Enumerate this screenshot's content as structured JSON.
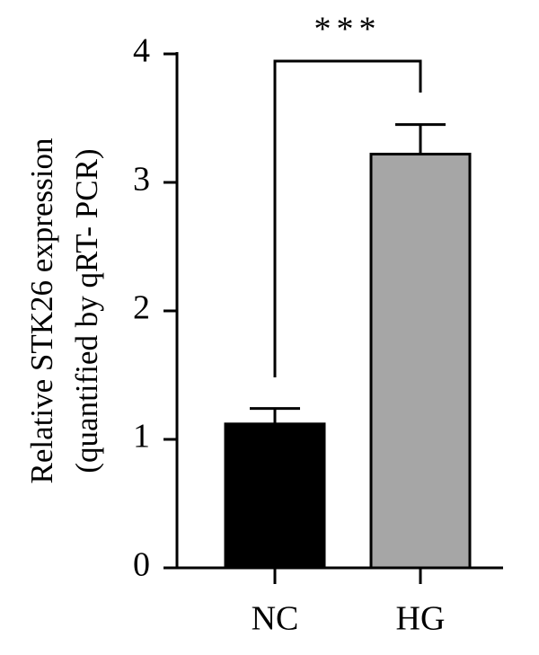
{
  "chart_data": {
    "type": "bar",
    "y_label_lines": [
      "Relative STK26 expression",
      "(quantified by qRT- PCR)"
    ],
    "categories": [
      "NC",
      "HG"
    ],
    "values": [
      1.12,
      3.22
    ],
    "errors": [
      0.12,
      0.23
    ],
    "colors": [
      "#000000",
      "#a6a6a6"
    ],
    "annotation": "***",
    "ylim": [
      0,
      4
    ],
    "yticks": [
      0,
      1,
      2,
      3,
      4
    ]
  }
}
